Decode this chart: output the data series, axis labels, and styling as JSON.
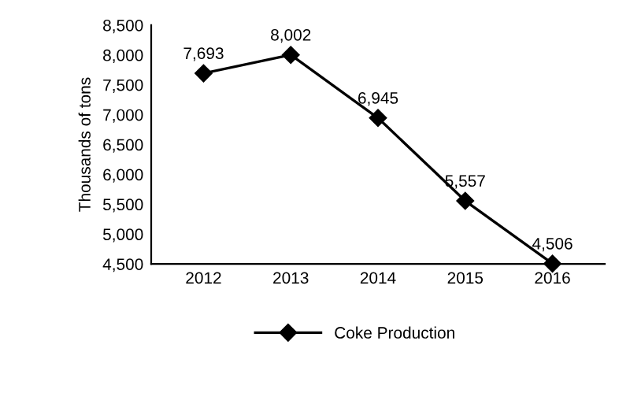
{
  "chart_data": {
    "type": "line",
    "ylabel": "Thousands of tons",
    "categories": [
      "2012",
      "2013",
      "2014",
      "2015",
      "2016"
    ],
    "series": [
      {
        "name": "Coke Production",
        "color": "#000000",
        "values": [
          7693,
          8002,
          6945,
          5557,
          4506
        ],
        "value_labels": [
          "7,693",
          "8,002",
          "6,945",
          "5,557",
          "4,506"
        ]
      }
    ],
    "ylim": [
      4500,
      8500
    ],
    "yticks": [
      {
        "value": 4500,
        "label": "4,500"
      },
      {
        "value": 5000,
        "label": "5,000"
      },
      {
        "value": 5500,
        "label": "5,500"
      },
      {
        "value": 6000,
        "label": "6,000"
      },
      {
        "value": 6500,
        "label": "6,500"
      },
      {
        "value": 7000,
        "label": "7,000"
      },
      {
        "value": 7500,
        "label": "7,500"
      },
      {
        "value": 8000,
        "label": "8,000"
      },
      {
        "value": 8500,
        "label": "8,500"
      }
    ],
    "grid": false,
    "legend": "bottom",
    "marker": "diamond",
    "line_style": "solid"
  }
}
